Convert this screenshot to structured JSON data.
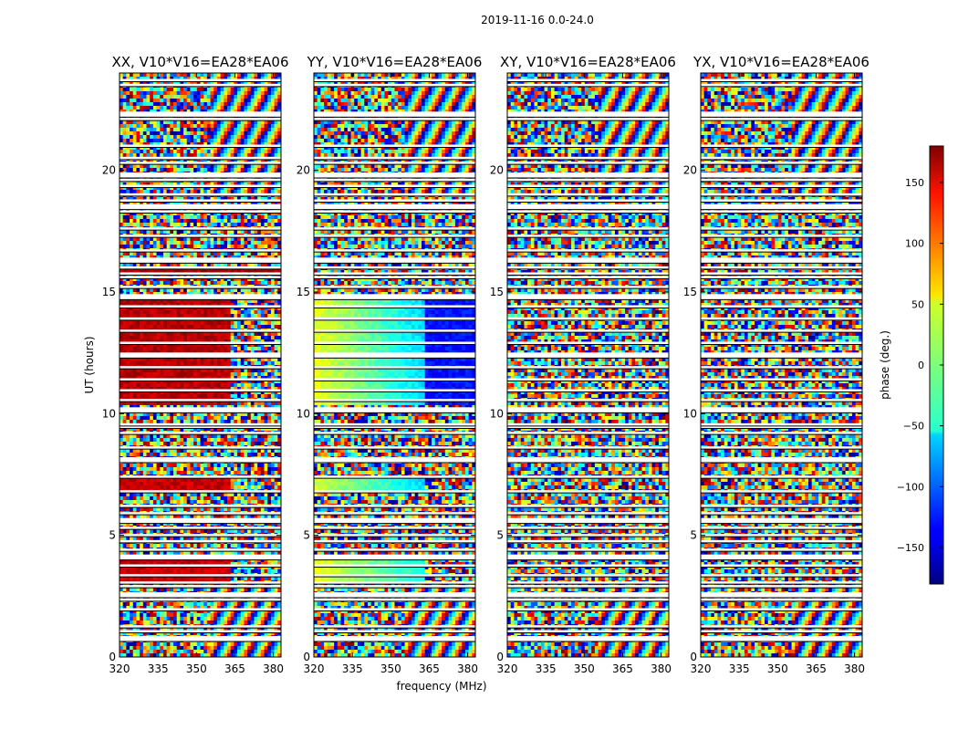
{
  "figure": {
    "suptitle": "2019-11-16 0.0-24.0"
  },
  "chart_data": {
    "type": "heatmap",
    "quantity": "phase",
    "xlabel": "frequency (MHz)",
    "ylabel": "UT (hours)",
    "xlim": [
      320,
      383
    ],
    "ylim": [
      0,
      24
    ],
    "xticks": [
      320,
      335,
      350,
      365,
      380
    ],
    "yticks": [
      0,
      5,
      10,
      15,
      20
    ],
    "colorbar": {
      "label": "phase (deg.)",
      "colormap": "jet",
      "range": [
        -180,
        180
      ],
      "ticks": [
        150,
        100,
        50,
        0,
        -50,
        -100,
        -150
      ],
      "tick_labels": [
        "150",
        "100",
        "50",
        "0",
        "−50",
        "−100",
        "−150"
      ]
    },
    "panels": [
      {
        "title": "XX, V10*V16=EA28*EA06",
        "polarization": "XX"
      },
      {
        "title": "YY, V10*V16=EA28*EA06",
        "polarization": "YY"
      },
      {
        "title": "XY, V10*V16=EA28*EA06",
        "polarization": "XY"
      },
      {
        "title": "YX, V10*V16=EA28*EA06",
        "polarization": "YX"
      }
    ],
    "flagged_ut_hours": [
      0.75,
      1.05,
      1.25,
      1.95,
      2.35,
      2.55,
      2.9,
      3.05,
      3.35,
      3.75,
      4.1,
      4.4,
      4.75,
      5.0,
      5.3,
      5.6,
      5.9,
      6.2,
      6.8,
      7.4,
      8.1,
      8.6,
      9.2,
      9.45,
      9.55,
      10.15,
      10.55,
      10.95,
      11.4,
      11.9,
      12.4,
      12.9,
      13.4,
      13.9,
      14.4,
      14.8,
      15.2,
      15.6,
      15.75,
      16.0,
      16.3,
      16.7,
      17.3,
      17.6,
      18.3,
      18.5,
      18.75,
      19.0,
      19.35,
      19.6,
      19.8,
      20.3,
      20.5,
      21.0,
      22.1,
      22.3,
      23.5,
      23.7
    ],
    "coherent_segments": [
      {
        "panel": "XX",
        "ut": [
          10.3,
          14.7
        ],
        "freq": [
          320,
          363
        ],
        "phase": 160
      },
      {
        "panel": "XX",
        "ut": [
          6.8,
          7.3
        ],
        "freq": [
          320,
          363
        ],
        "phase": 155
      },
      {
        "panel": "XX",
        "ut": [
          3.0,
          4.2
        ],
        "freq": [
          320,
          363
        ],
        "phase": 155
      },
      {
        "panel": "XX",
        "ut": [
          15.8,
          16.0
        ],
        "freq": [
          320,
          383
        ],
        "phase": 165
      },
      {
        "panel": "YY",
        "ut": [
          10.3,
          14.7
        ],
        "freq": [
          320,
          363
        ],
        "phase_start": 40,
        "phase_end": -60
      },
      {
        "panel": "YY",
        "ut": [
          10.3,
          14.7
        ],
        "freq": [
          363,
          383
        ],
        "phase": -130
      },
      {
        "panel": "YY",
        "ut": [
          6.8,
          7.3
        ],
        "freq": [
          320,
          363
        ],
        "phase_start": 30,
        "phase_end": -60
      },
      {
        "panel": "YY",
        "ut": [
          3.0,
          4.2
        ],
        "freq": [
          320,
          363
        ],
        "phase_start": 40,
        "phase_end": -40
      }
    ]
  }
}
